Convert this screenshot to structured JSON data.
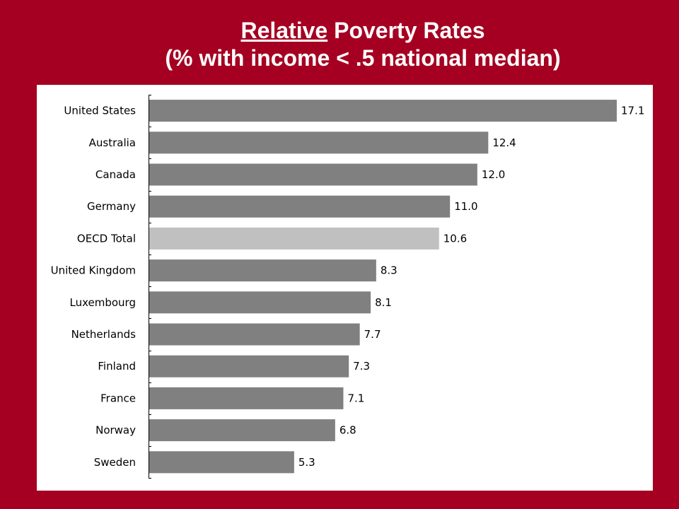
{
  "title": {
    "line1_emphasis": "Relative",
    "line1_rest": " Poverty Rates",
    "line2": "(% with income < .5 national median)"
  },
  "colors": {
    "background": "#a50021",
    "bar": "#808080",
    "highlight_bar": "#c0c0c0",
    "panel": "#ffffff"
  },
  "chart_data": {
    "type": "bar",
    "orientation": "horizontal",
    "title": "Relative Poverty Rates (% with income < .5 national median)",
    "categories": [
      "United States",
      "Australia",
      "Canada",
      "Germany",
      "OECD Total",
      "United Kingdom",
      "Luxembourg",
      "Netherlands",
      "Finland",
      "France",
      "Norway",
      "Sweden"
    ],
    "values": [
      17.1,
      12.4,
      12.0,
      11.0,
      10.6,
      8.3,
      8.1,
      7.7,
      7.3,
      7.1,
      6.8,
      5.3
    ],
    "value_labels": [
      "17.1",
      "12.4",
      "12.0",
      "11.0",
      "10.6",
      "8.3",
      "8.1",
      "7.7",
      "7.3",
      "7.1",
      "6.8",
      "5.3"
    ],
    "highlight": "OECD Total",
    "xlim": [
      0,
      17.1
    ],
    "grid": false,
    "legend": "none"
  }
}
